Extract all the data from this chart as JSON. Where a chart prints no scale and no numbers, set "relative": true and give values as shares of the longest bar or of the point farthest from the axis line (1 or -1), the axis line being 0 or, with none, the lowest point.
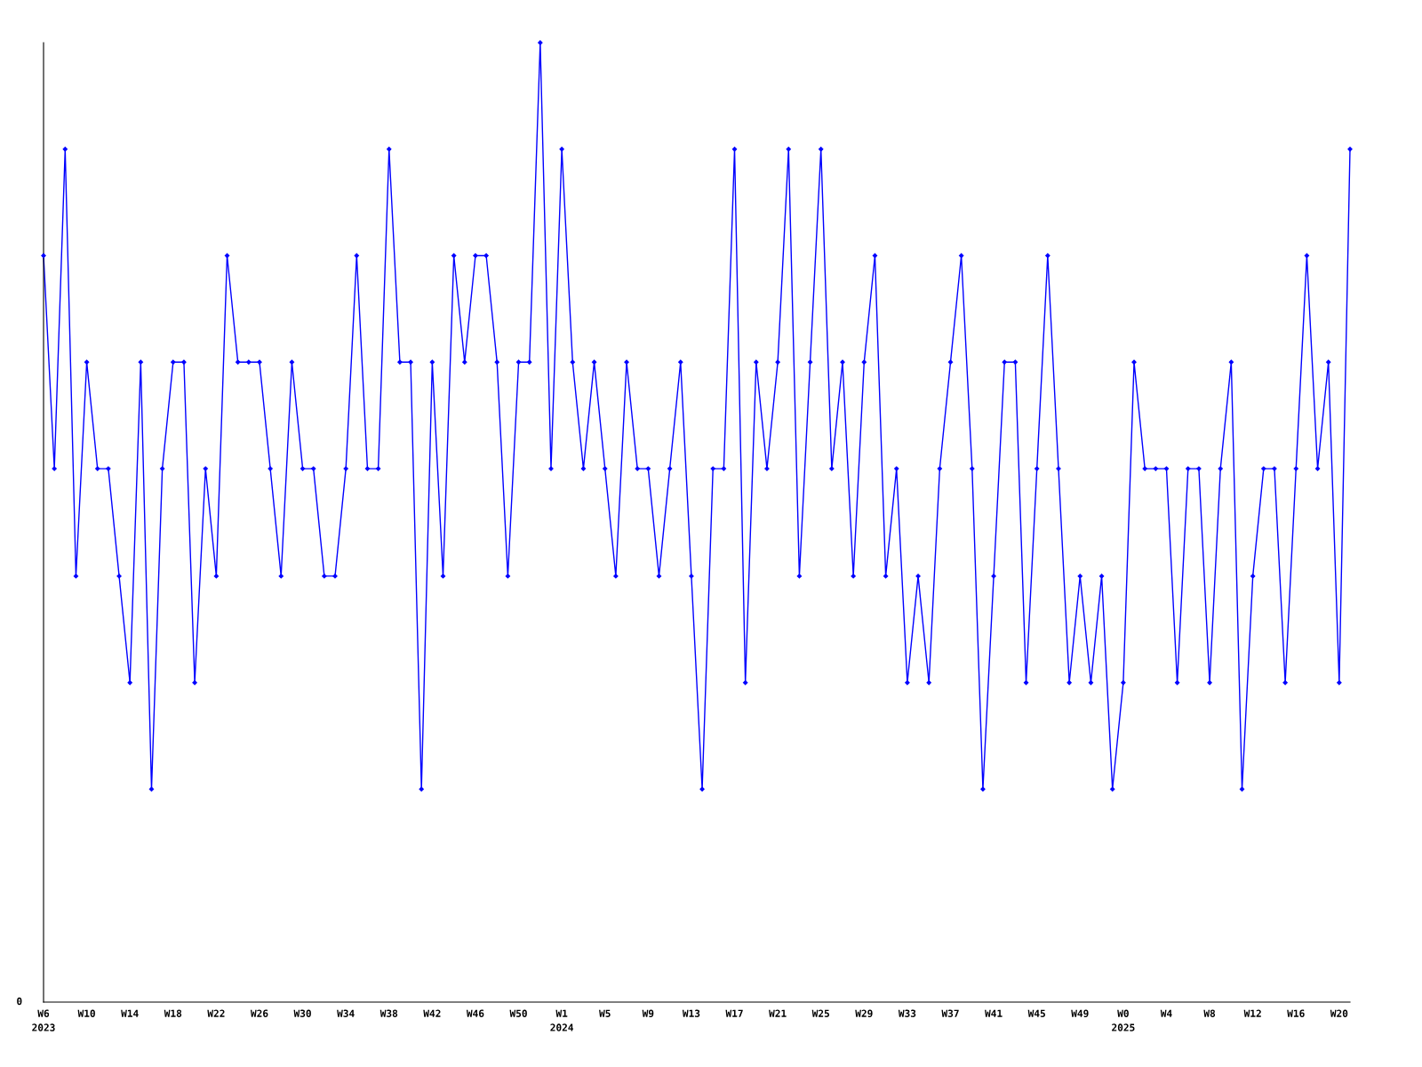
{
  "chart_data": {
    "type": "line",
    "relative": true,
    "marker": "diamond",
    "line_style": "solid",
    "grid": false,
    "legend": false,
    "categories": [
      "W6\n2023",
      null,
      null,
      null,
      "W10",
      null,
      null,
      null,
      "W14",
      null,
      null,
      null,
      "W18",
      null,
      null,
      null,
      "W22",
      null,
      null,
      null,
      "W26",
      null,
      null,
      null,
      "W30",
      null,
      null,
      null,
      "W34",
      null,
      null,
      null,
      "W38",
      null,
      null,
      null,
      "W42",
      null,
      null,
      null,
      "W46",
      null,
      null,
      null,
      "W50",
      null,
      null,
      null,
      "W1\n2024",
      null,
      null,
      null,
      "W5",
      null,
      null,
      null,
      "W9",
      null,
      null,
      null,
      "W13",
      null,
      null,
      null,
      "W17",
      null,
      null,
      null,
      "W21",
      null,
      null,
      null,
      "W25",
      null,
      null,
      null,
      "W29",
      null,
      null,
      null,
      "W33",
      null,
      null,
      null,
      "W37",
      null,
      null,
      null,
      "W41",
      null,
      null,
      null,
      "W45",
      null,
      null,
      null,
      "W49",
      null,
      null,
      null,
      "W0\n2025",
      null,
      null,
      null,
      "W4",
      null,
      null,
      null,
      "W8",
      null,
      null,
      null,
      "W12",
      null,
      null,
      null,
      "W16",
      null,
      null,
      null,
      "W20",
      null
    ],
    "series": [
      {
        "color": "#0000ff",
        "values": [
          0.778,
          0.556,
          0.889,
          0.444,
          0.667,
          0.556,
          0.556,
          0.444,
          0.333,
          0.667,
          0.222,
          0.556,
          0.667,
          0.667,
          0.333,
          0.556,
          0.444,
          0.778,
          0.667,
          0.667,
          0.667,
          0.556,
          0.444,
          0.667,
          0.556,
          0.556,
          0.444,
          0.444,
          0.556,
          0.778,
          0.556,
          0.556,
          0.889,
          0.667,
          0.667,
          0.222,
          0.667,
          0.444,
          0.778,
          0.667,
          0.778,
          0.778,
          0.667,
          0.444,
          0.667,
          0.667,
          1,
          0.556,
          0.889,
          0.667,
          0.556,
          0.667,
          0.556,
          0.444,
          0.667,
          0.556,
          0.556,
          0.444,
          0.556,
          0.667,
          0.444,
          0.222,
          0.556,
          0.556,
          0.889,
          0.333,
          0.667,
          0.556,
          0.667,
          0.889,
          0.444,
          0.667,
          0.889,
          0.556,
          0.667,
          0.444,
          0.667,
          0.778,
          0.444,
          0.556,
          0.333,
          0.444,
          0.333,
          0.556,
          0.667,
          0.778,
          0.556,
          0.222,
          0.444,
          0.667,
          0.667,
          0.333,
          0.556,
          0.778,
          0.556,
          0.333,
          0.444,
          0.333,
          0.444,
          0.222,
          0.333,
          0.667,
          0.556,
          0.556,
          0.556,
          0.333,
          0.556,
          0.556,
          0.333,
          0.556,
          0.667,
          0.222,
          0.444,
          0.556,
          0.556,
          0.333,
          0.556,
          0.778,
          0.556,
          0.667,
          0.333,
          0.889
        ]
      }
    ],
    "annotations": [
      "0"
    ]
  }
}
